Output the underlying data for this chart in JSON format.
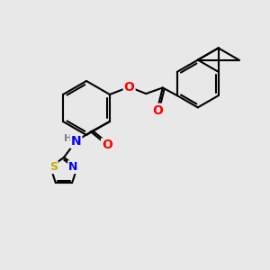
{
  "background_color": "#e8e8e8",
  "bond_color": "#000000",
  "bond_width": 1.5,
  "atom_colors": {
    "O": "#ff0000",
    "N": "#0000ff",
    "S": "#ccaa00",
    "H": "#7f7f7f",
    "C": "#000000"
  },
  "font_size": 9,
  "figsize": [
    3.0,
    3.0
  ],
  "dpi": 100,
  "xlim": [
    0,
    10
  ],
  "ylim": [
    0,
    10
  ]
}
